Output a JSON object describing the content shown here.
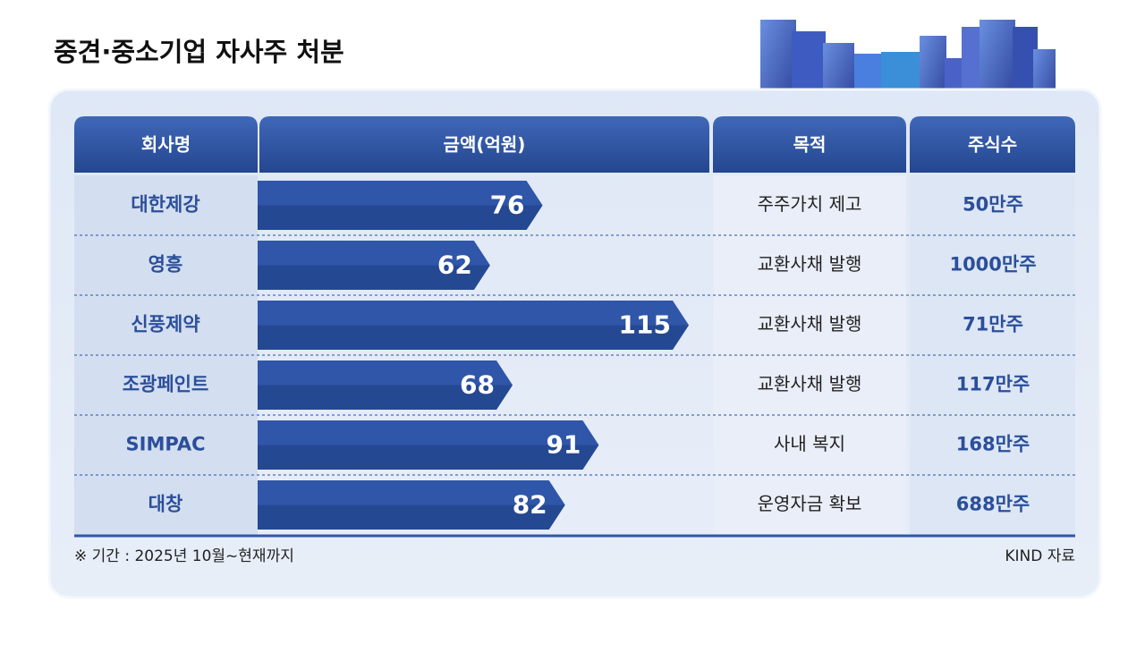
{
  "title": "중견·중소기업 자사주 처분",
  "headers": [
    "회사명",
    "금액(억원)",
    "목적",
    "주식수"
  ],
  "chart_data": {
    "type": "bar",
    "categories": [
      "대한제강",
      "영흥",
      "신풍제약",
      "조광페인트",
      "SIMPAC",
      "대창"
    ],
    "values": [
      76,
      62,
      115,
      68,
      91,
      82
    ],
    "color": "#2f56a8"
  },
  "purposes": [
    "주주가치 제고",
    "교환사채 발행",
    "교환사채 발행",
    "교환사채 발행",
    "사내 복지",
    "운영자금 확보"
  ],
  "shares": [
    "50만주",
    "1000만주",
    "71만주",
    "117만주",
    "168만주",
    "688만주"
  ],
  "note": "※ 기간 : 2025년 10월~현재까지",
  "source": "KIND 자료"
}
